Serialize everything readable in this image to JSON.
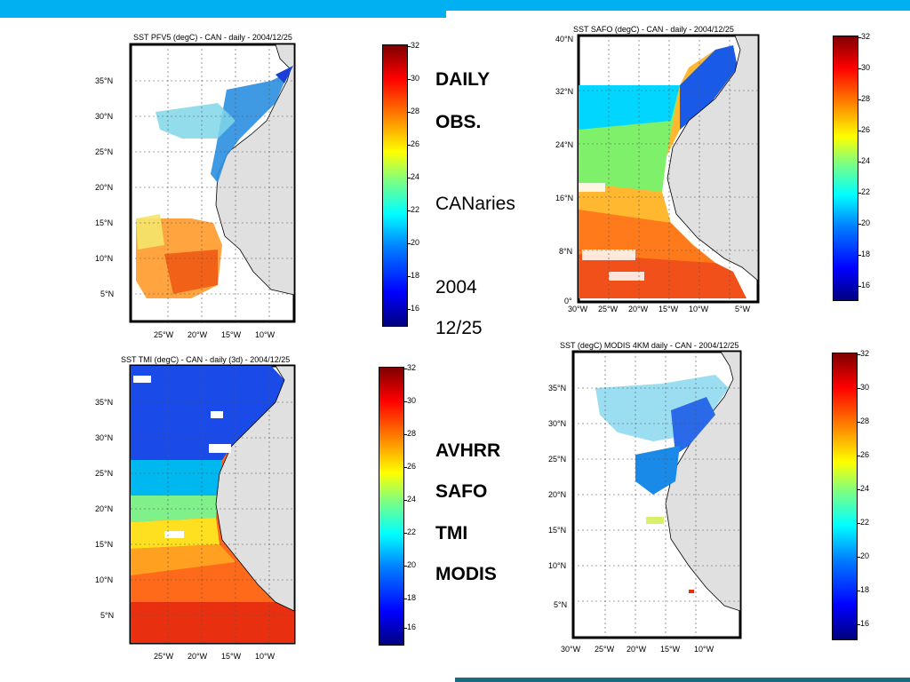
{
  "slide": {
    "colors": {
      "top_bar": "#00b0f0",
      "bottom_bar": "#1a6b80",
      "land": "#e0e0e0"
    }
  },
  "labels": {
    "daily": "DAILY",
    "obs": "OBS.",
    "region": "CANaries",
    "year": "2004",
    "date": "12/25",
    "sensors": [
      "AVHRR",
      "SAFO",
      "TMI",
      "MODIS"
    ]
  },
  "maps": [
    {
      "id": "pfv5",
      "title": "SST PFV5  (degC) - CAN - daily - 2004/12/25",
      "lat_ticks": [
        "35°N",
        "30°N",
        "25°N",
        "20°N",
        "15°N",
        "10°N",
        "5°N"
      ],
      "lon_ticks": [
        "25°W",
        "20°W",
        "15°W",
        "10°W"
      ],
      "colorbar_ticks": [
        "32",
        "30",
        "28",
        "26",
        "24",
        "22",
        "20",
        "18",
        "16"
      ]
    },
    {
      "id": "safo",
      "title": "SST SAFO  (degC) - CAN - daily - 2004/12/25",
      "lat_ticks": [
        "40°N",
        "32°N",
        "24°N",
        "16°N",
        "8°N",
        "0°"
      ],
      "lon_ticks": [
        "30°W",
        "25°W",
        "20°W",
        "15°W",
        "10°W",
        "5°W"
      ],
      "colorbar_ticks": [
        "32",
        "30",
        "28",
        "26",
        "24",
        "22",
        "20",
        "18",
        "16"
      ]
    },
    {
      "id": "tmi",
      "title": "SST TMI  (degC) - CAN - daily (3d) - 2004/12/25",
      "lat_ticks": [
        "35°N",
        "30°N",
        "25°N",
        "20°N",
        "15°N",
        "10°N",
        "5°N"
      ],
      "lon_ticks": [
        "25°W",
        "20°W",
        "15°W",
        "10°W"
      ],
      "colorbar_ticks": [
        "32",
        "30",
        "28",
        "26",
        "24",
        "22",
        "20",
        "18",
        "16"
      ]
    },
    {
      "id": "modis",
      "title": "SST (degC) MODIS 4KM  daily - CAN - 2004/12/25",
      "lat_ticks": [
        "35°N",
        "30°N",
        "25°N",
        "20°N",
        "15°N",
        "10°N",
        "5°N"
      ],
      "lon_ticks": [
        "30°W",
        "25°W",
        "20°W",
        "15°W",
        "10°W"
      ],
      "colorbar_ticks": [
        "32",
        "30",
        "28",
        "26",
        "24",
        "22",
        "20",
        "18",
        "16"
      ]
    }
  ]
}
